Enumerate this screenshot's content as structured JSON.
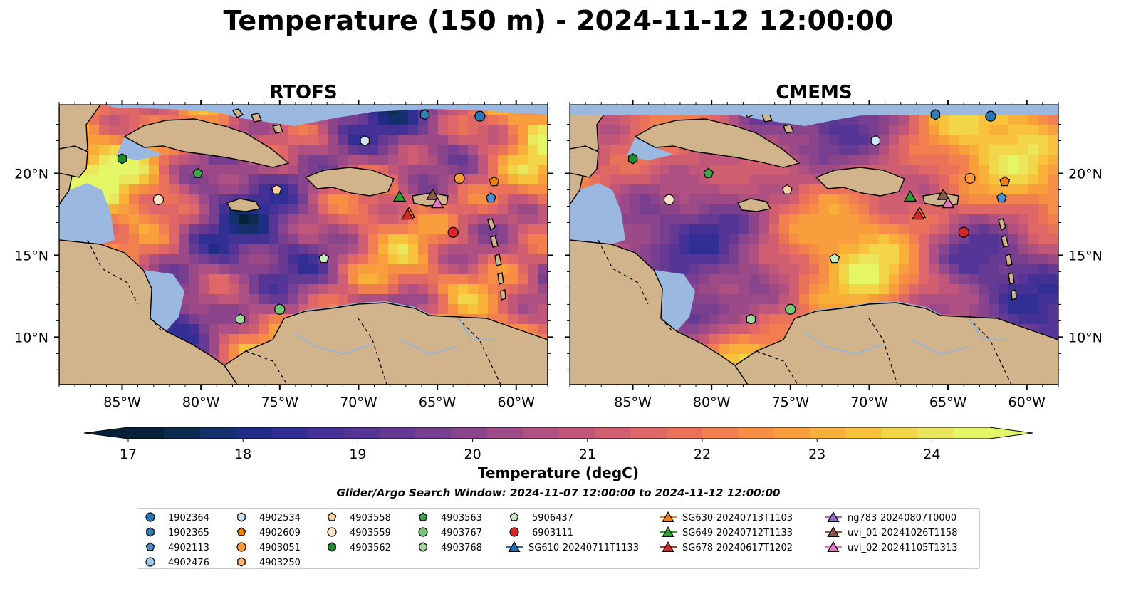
{
  "figure": {
    "title": "Temperature (150 m) - 2024-11-12 12:00:00",
    "search_window": "Glider/Argo Search Window: 2024-11-07 12:00:00 to 2024-11-12 12:00:00"
  },
  "chart_data": {
    "type": "heatmap",
    "panels": [
      {
        "title": "RTOFS"
      },
      {
        "title": "CMEMS"
      }
    ],
    "x_ticks": [
      "85°W",
      "80°W",
      "75°W",
      "70°W",
      "65°W",
      "60°W"
    ],
    "x_tick_values": [
      -85,
      -80,
      -75,
      -70,
      -65,
      -60
    ],
    "y_ticks": [
      "20°N",
      "15°N",
      "10°N"
    ],
    "y_tick_values": [
      20,
      15,
      10
    ],
    "xlim": [
      -89,
      -58
    ],
    "ylim": [
      7.1,
      24.2
    ],
    "colorbar": {
      "label": "Temperature (degC)",
      "range": [
        16.6,
        24.6
      ],
      "ticks": [
        17,
        18,
        19,
        20,
        21,
        22,
        23,
        24
      ],
      "extend": "both",
      "colors": [
        "#06223a",
        "#0d2b4e",
        "#132f6c",
        "#1f2e84",
        "#312f93",
        "#433196",
        "#553595",
        "#663a93",
        "#783f90",
        "#8a448c",
        "#9c4a87",
        "#ae5081",
        "#c0577a",
        "#d05e71",
        "#df6767",
        "#ea725b",
        "#f27f4f",
        "#f78e45",
        "#f99e3c",
        "#f9b039",
        "#f7c23c",
        "#f2d548",
        "#eae75c",
        "#e4f565"
      ],
      "under_color": "#06223a",
      "over_color": "#e4f565"
    },
    "platforms": [
      {
        "id": "1902364",
        "marker": "circle",
        "color": "#2878b4",
        "lon": -62.3,
        "lat": 23.5
      },
      {
        "id": "1902365",
        "marker": "hexagon",
        "color": "#2c7fb8",
        "lon": -65.8,
        "lat": 23.6
      },
      {
        "id": "4902113",
        "marker": "pentagon",
        "color": "#4a8fd1",
        "lon": -61.6,
        "lat": 18.5
      },
      {
        "id": "4902476",
        "marker": "circle",
        "color": "#9ecae9",
        "lon": null,
        "lat": null
      },
      {
        "id": "4902534",
        "marker": "hexagon",
        "color": "#cde5f7",
        "lon": -69.6,
        "lat": 22.0
      },
      {
        "id": "4902609",
        "marker": "pentagon",
        "color": "#f07d0c",
        "lon": -61.4,
        "lat": 19.5
      },
      {
        "id": "4903051",
        "marker": "circle",
        "color": "#fd9b33",
        "lon": -63.6,
        "lat": 19.7
      },
      {
        "id": "4903250",
        "marker": "hexagon",
        "color": "#fdb475",
        "lon": null,
        "lat": null
      },
      {
        "id": "4903558",
        "marker": "pentagon",
        "color": "#fdd0a2",
        "lon": -75.2,
        "lat": 19.0
      },
      {
        "id": "4903559",
        "marker": "circle",
        "color": "#fde0c5",
        "lon": -82.7,
        "lat": 18.4
      },
      {
        "id": "4903562",
        "marker": "hexagon",
        "color": "#1e8a2a",
        "lon": -85.0,
        "lat": 20.9
      },
      {
        "id": "4903563",
        "marker": "pentagon",
        "color": "#3aa84a",
        "lon": -80.2,
        "lat": 20.0
      },
      {
        "id": "4903767",
        "marker": "circle",
        "color": "#73c476",
        "lon": -75.0,
        "lat": 11.7
      },
      {
        "id": "4903768",
        "marker": "hexagon",
        "color": "#a1d99b",
        "lon": -77.5,
        "lat": 11.1
      },
      {
        "id": "5906437",
        "marker": "pentagon",
        "color": "#c7e9c0",
        "lon": -72.2,
        "lat": 14.8
      },
      {
        "id": "6903111",
        "marker": "circle",
        "color": "#d62728",
        "lon": -64.0,
        "lat": 16.4
      },
      {
        "id": "SG610-20240711T1133",
        "marker": "triangle",
        "color": "#1f6fb4",
        "lon": null,
        "lat": null
      },
      {
        "id": "SG630-20240713T1103",
        "marker": "triangle",
        "color": "#ff7f0e",
        "lon": -66.8,
        "lat": 17.6
      },
      {
        "id": "SG649-20240712T1133",
        "marker": "triangle",
        "color": "#2ca02c",
        "lon": -67.4,
        "lat": 18.6
      },
      {
        "id": "SG678-20240617T1202",
        "marker": "triangle",
        "color": "#d62728",
        "lon": -66.9,
        "lat": 17.5
      },
      {
        "id": "ng783-20240807T0000",
        "marker": "triangle",
        "color": "#9467bd",
        "lon": null,
        "lat": null
      },
      {
        "id": "uvi_01-20241026T1158",
        "marker": "triangle",
        "color": "#8c564b",
        "lon": -65.3,
        "lat": 18.7
      },
      {
        "id": "uvi_02-20241105T1313",
        "marker": "triangle",
        "color": "#e377c2",
        "lon": -65.0,
        "lat": 18.2
      }
    ]
  }
}
